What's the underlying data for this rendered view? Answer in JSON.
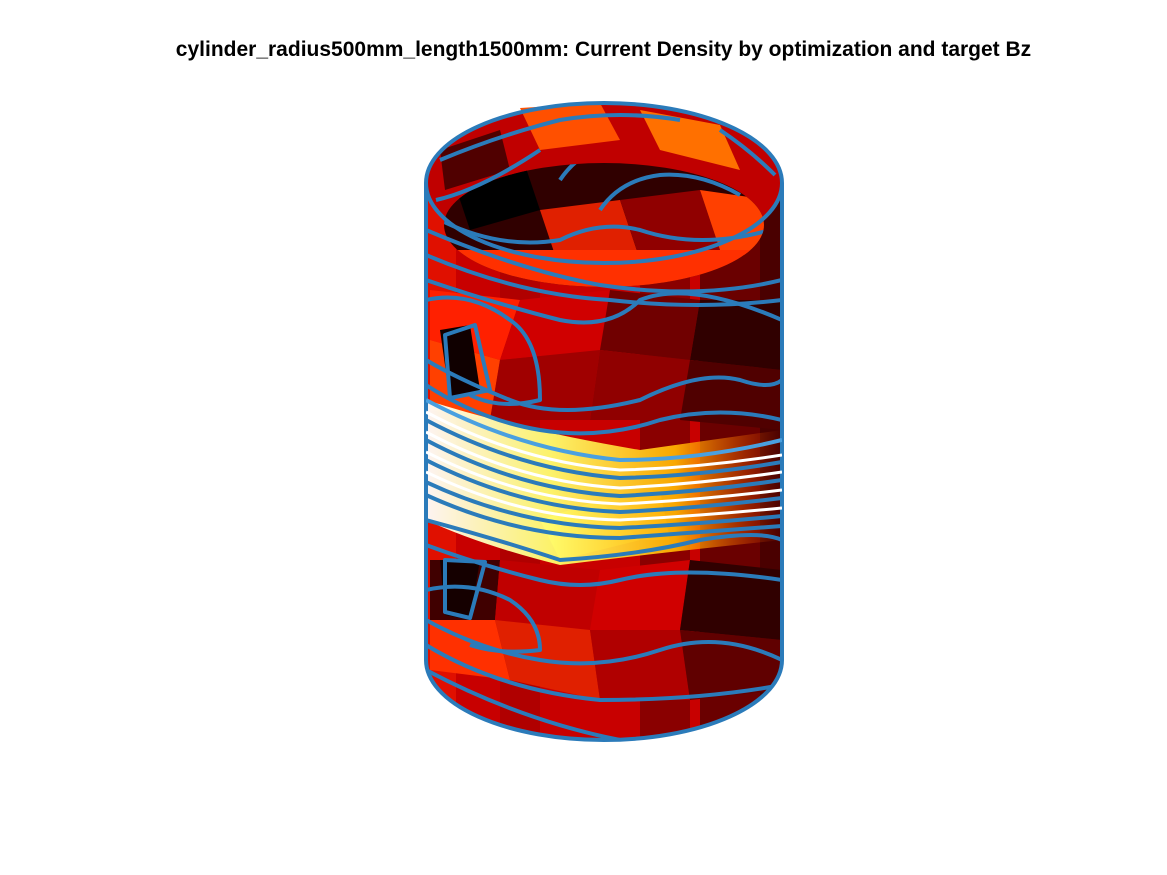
{
  "figure": {
    "title": "cylinder_radius500mm_length1500mm: Current Density by optimization and target Bz",
    "colormap": "hot",
    "contour_color": "#2b7bba",
    "background": "#ffffff"
  }
}
